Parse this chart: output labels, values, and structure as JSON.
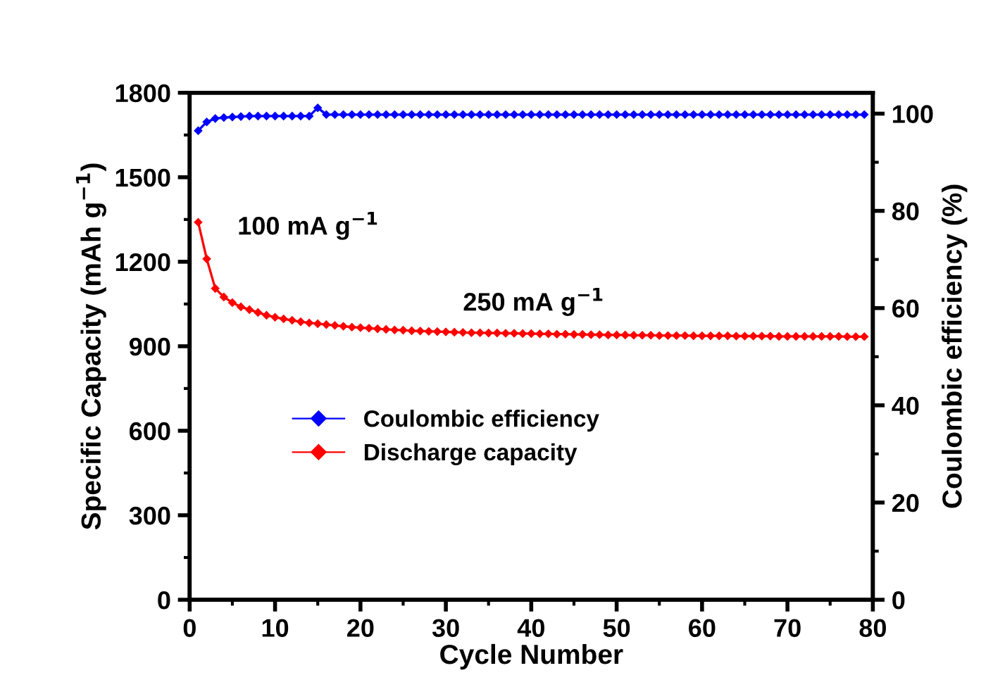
{
  "chart_data": {
    "type": "line",
    "xlabel": "Cycle Number",
    "ylabel": "Specific Capacity (mAh g$^{−1}$)",
    "y2label": "Coulombic efficiency (%)",
    "series": [
      {
        "name": "Coulombic efficiency",
        "color": "#0000ff",
        "axis": "y2",
        "x": [
          1,
          2,
          3,
          4,
          5,
          6,
          7,
          8,
          9,
          10,
          11,
          12,
          13,
          14,
          15,
          16,
          17,
          18,
          19,
          20,
          21,
          22,
          23,
          24,
          25,
          26,
          27,
          28,
          29,
          30,
          31,
          32,
          33,
          34,
          35,
          36,
          37,
          38,
          39,
          40,
          41,
          42,
          43,
          44,
          45,
          46,
          47,
          48,
          49,
          50,
          51,
          52,
          53,
          54,
          55,
          56,
          57,
          58,
          59,
          60,
          61,
          62,
          63,
          64,
          65,
          66,
          67,
          68,
          69,
          70,
          71,
          72,
          73,
          74,
          75,
          76,
          77,
          78,
          79
        ],
        "values": [
          96.5,
          98.3,
          99.0,
          99.2,
          99.3,
          99.4,
          99.5,
          99.5,
          99.5,
          99.5,
          99.5,
          99.5,
          99.5,
          99.5,
          101.2,
          99.8,
          99.8,
          99.8,
          99.8,
          99.8,
          99.8,
          99.8,
          99.8,
          99.8,
          99.8,
          99.8,
          99.8,
          99.8,
          99.8,
          99.8,
          99.8,
          99.8,
          99.8,
          99.8,
          99.8,
          99.8,
          99.8,
          99.8,
          99.8,
          99.8,
          99.8,
          99.8,
          99.8,
          99.8,
          99.8,
          99.8,
          99.8,
          99.8,
          99.8,
          99.8,
          99.8,
          99.8,
          99.8,
          99.8,
          99.8,
          99.8,
          99.8,
          99.8,
          99.8,
          99.8,
          99.8,
          99.8,
          99.8,
          99.8,
          99.8,
          99.8,
          99.8,
          99.8,
          99.8,
          99.8,
          99.8,
          99.8,
          99.8,
          99.8,
          99.8,
          99.8,
          99.8,
          99.8,
          99.8
        ]
      },
      {
        "name": "Discharge capacity",
        "color": "#ff0000",
        "axis": "y",
        "x": [
          1,
          2,
          3,
          4,
          5,
          6,
          7,
          8,
          9,
          10,
          11,
          12,
          13,
          14,
          15,
          16,
          17,
          18,
          19,
          20,
          21,
          22,
          23,
          24,
          25,
          26,
          27,
          28,
          29,
          30,
          31,
          32,
          33,
          34,
          35,
          36,
          37,
          38,
          39,
          40,
          41,
          42,
          43,
          44,
          45,
          46,
          47,
          48,
          49,
          50,
          51,
          52,
          53,
          54,
          55,
          56,
          57,
          58,
          59,
          60,
          61,
          62,
          63,
          64,
          65,
          66,
          67,
          68,
          69,
          70,
          71,
          72,
          73,
          74,
          75,
          76,
          77,
          78,
          79
        ],
        "values": [
          1340,
          1210,
          1105,
          1075,
          1055,
          1040,
          1030,
          1020,
          1010,
          1003,
          997,
          992,
          987,
          983,
          980,
          977,
          974,
          971,
          968,
          966,
          964,
          962,
          960,
          958,
          957,
          955,
          954,
          953,
          952,
          951,
          950,
          949,
          948,
          948,
          947,
          947,
          946,
          946,
          945,
          945,
          944,
          944,
          943,
          943,
          942,
          942,
          941,
          941,
          940,
          940,
          940,
          939,
          939,
          939,
          938,
          938,
          938,
          938,
          937,
          937,
          937,
          937,
          937,
          936,
          936,
          936,
          936,
          936,
          935,
          935,
          935,
          935,
          935,
          935,
          935,
          935,
          934,
          934,
          934
        ]
      }
    ],
    "xlim": [
      0,
      80
    ],
    "xticks": [
      0,
      10,
      20,
      30,
      40,
      50,
      60,
      70,
      80
    ],
    "ylim": [
      0,
      1800
    ],
    "yticks": [
      0,
      300,
      600,
      900,
      1200,
      1500,
      1800
    ],
    "y2lim": [
      0,
      104.3
    ],
    "y2ticks": [
      0,
      20,
      40,
      60,
      80,
      100
    ],
    "annotations": [
      "100 mA g$^{−1}$",
      "250 mA g$^{−1}$"
    ],
    "marker": "diamond",
    "line_style": "solid",
    "legend": "center left",
    "grid": false
  }
}
